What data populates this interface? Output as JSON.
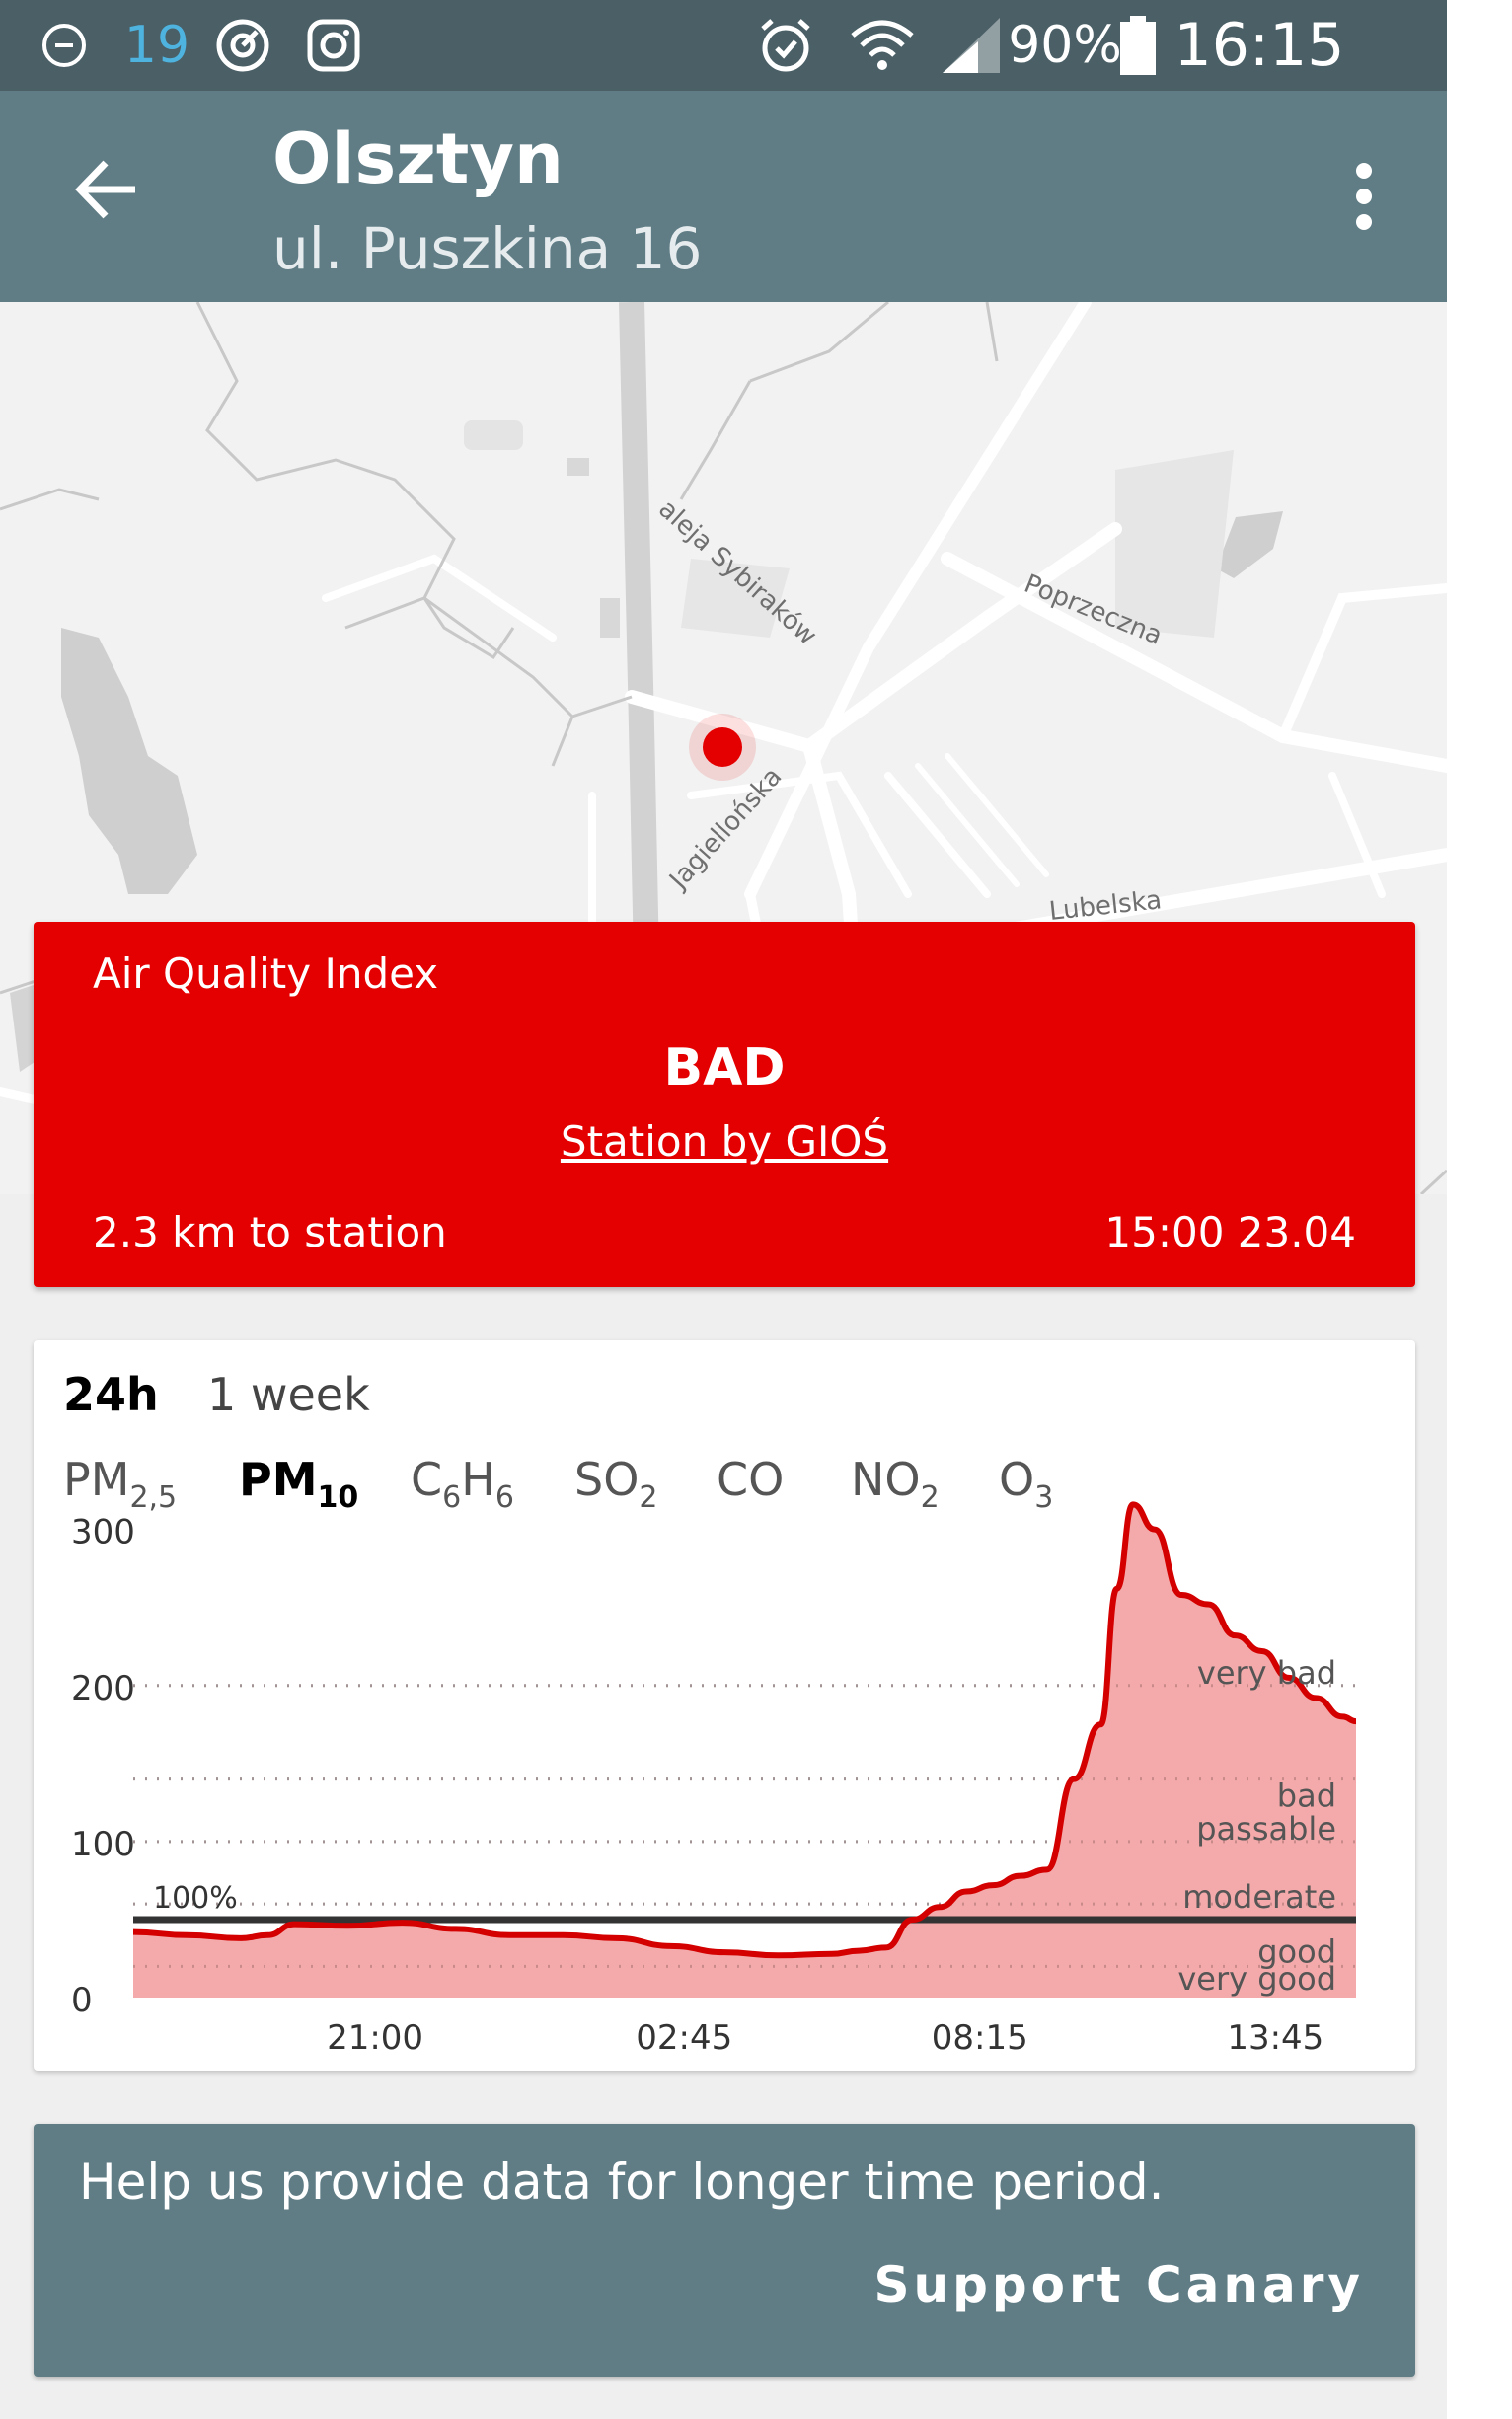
{
  "status_bar": {
    "notification_count": "19",
    "battery_percent": "90%",
    "time": "16:15",
    "icons": [
      "minus-circle-icon",
      "sync-icon",
      "instagram-icon",
      "alarm-icon",
      "wifi-icon",
      "signal-icon",
      "battery-icon"
    ]
  },
  "app_bar": {
    "title": "Olsztyn",
    "subtitle": "ul. Puszkina 16",
    "back_icon": "arrow-back-icon",
    "menu_icon": "more-vert-icon"
  },
  "map": {
    "street_labels": [
      "aleja Sybiraków",
      "Poprzeczna",
      "Jagiellońska",
      "Lubelska"
    ],
    "marker_color": "#e40000"
  },
  "aqi_card": {
    "label": "Air Quality Index",
    "value": "BAD",
    "station_link": "Station by GIOŚ",
    "distance": "2.3 km to station",
    "timestamp": "15:00 23.04",
    "color": "#e40000"
  },
  "chart_card": {
    "range_tabs": [
      {
        "label": "24h",
        "active": true
      },
      {
        "label": "1 week",
        "active": false
      }
    ],
    "pollutant_tabs": [
      {
        "base": "PM",
        "sub": "2,5",
        "active": false
      },
      {
        "base": "PM",
        "sub": "10",
        "active": true
      },
      {
        "base": "C",
        "sub": "6",
        "base2": "H",
        "sub2": "6",
        "active": false
      },
      {
        "base": "SO",
        "sub": "2",
        "active": false
      },
      {
        "base": "CO",
        "sub": "",
        "active": false
      },
      {
        "base": "NO",
        "sub": "2",
        "active": false
      },
      {
        "base": "O",
        "sub": "3",
        "active": false
      }
    ]
  },
  "chart_data": {
    "type": "area",
    "title": "",
    "xlabel": "",
    "ylabel": "",
    "ylim": [
      0,
      320
    ],
    "y_ticks": [
      0,
      100,
      200,
      300
    ],
    "x_tick_labels": [
      {
        "label": "21:00",
        "x": 4.5
      },
      {
        "label": "02:45",
        "x": 10.25
      },
      {
        "label": "08:15",
        "x": 15.75
      },
      {
        "label": "13:45",
        "x": 21.25
      }
    ],
    "x_range": [
      0,
      22.75
    ],
    "threshold": {
      "value": 50,
      "label": "100%"
    },
    "bands": [
      {
        "label": "very bad",
        "from": 200
      },
      {
        "label": "bad",
        "from": 140
      },
      {
        "label": "passable",
        "from": 100
      },
      {
        "label": "moderate",
        "from": 60
      },
      {
        "label": "good",
        "from": 20
      },
      {
        "label": "very good",
        "from": 0
      }
    ],
    "band_lines": [
      200,
      140,
      100,
      60,
      20
    ],
    "series": [
      {
        "x": [
          0,
          1,
          2,
          2.5,
          3,
          4,
          5,
          6,
          7,
          8,
          9,
          10,
          11,
          12,
          13,
          13.5,
          14,
          14.5,
          15,
          15.5,
          16,
          16.5,
          17,
          17.5,
          18,
          18.3,
          18.6,
          19,
          19.5,
          20,
          20.5,
          21,
          21.5,
          22,
          22.5,
          22.75
        ],
        "values": [
          42,
          40,
          38,
          40,
          47,
          46,
          48,
          44,
          40,
          40,
          38,
          33,
          29,
          27,
          28,
          30,
          32,
          50,
          58,
          68,
          72,
          78,
          82,
          140,
          175,
          262,
          316,
          300,
          258,
          252,
          232,
          222,
          205,
          192,
          180,
          177
        ]
      }
    ],
    "line_color": "#d40000",
    "fill_color": "#f4aaaa"
  },
  "support_card": {
    "message": "Help us provide data for longer time period.",
    "button_label": "Support Canary"
  }
}
